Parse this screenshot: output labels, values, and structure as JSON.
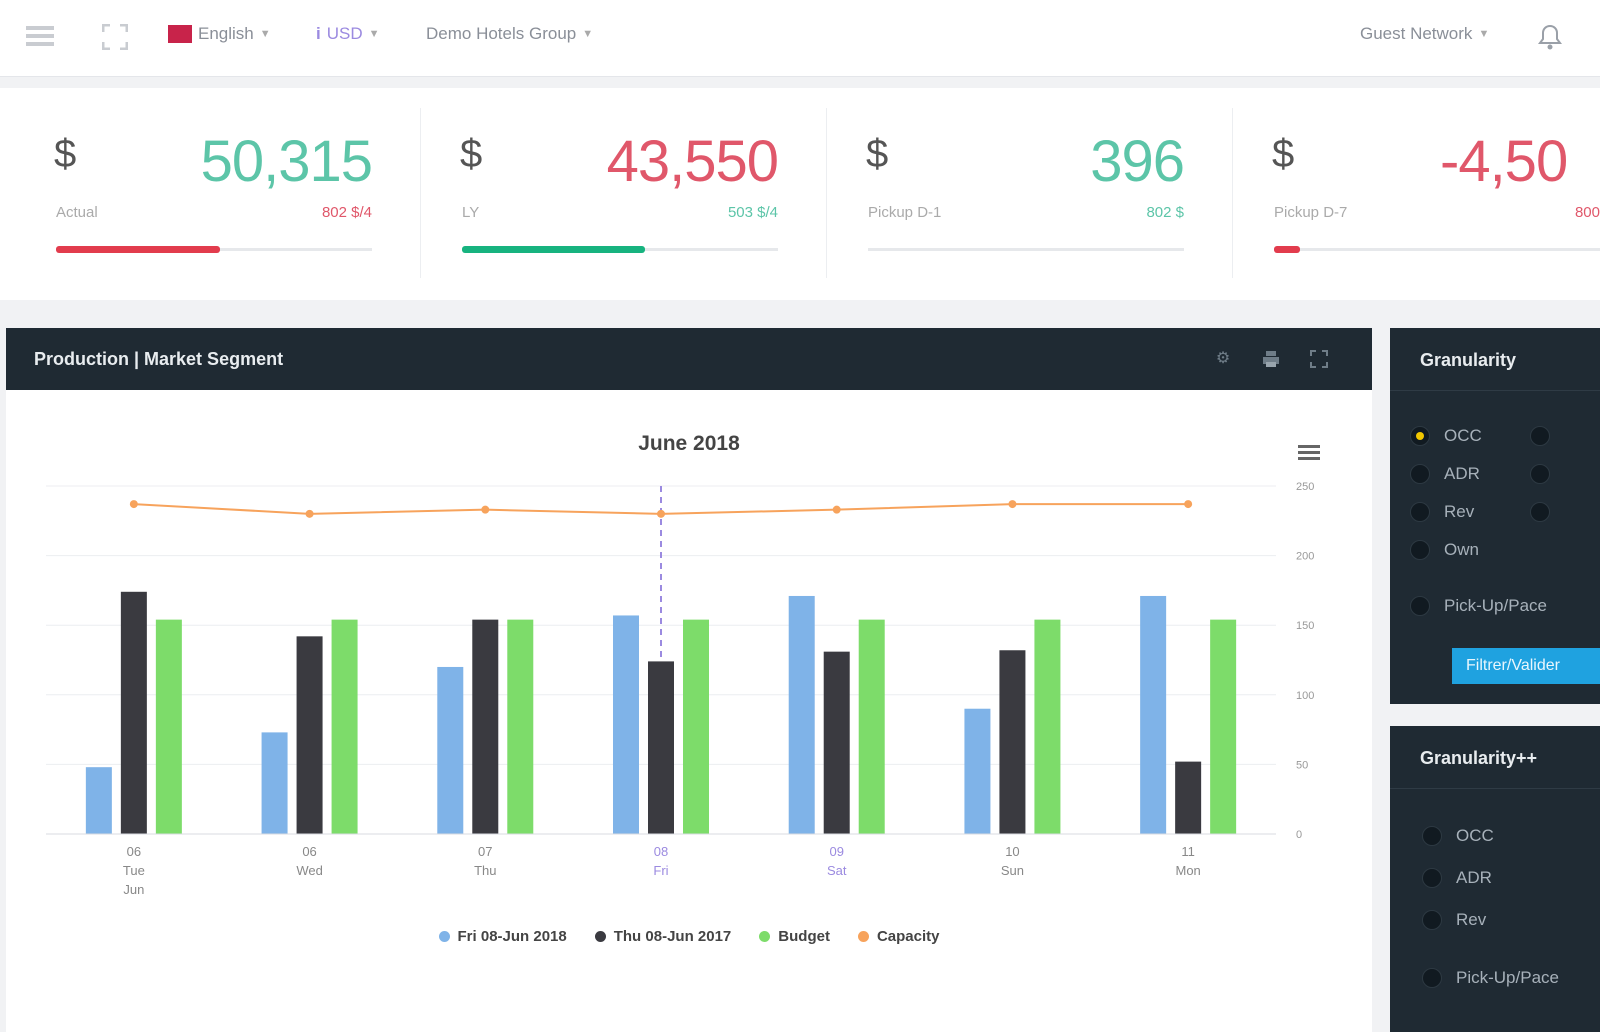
{
  "topbar": {
    "language": "English",
    "currency": "USD",
    "hotel": "Demo Hotels Group",
    "user": "Guest Network"
  },
  "kpis": [
    {
      "currency": "$",
      "value": "50,315",
      "value_color": "#5cc5a8",
      "label": "Actual",
      "sub": "802 $/4",
      "sub_color": "#e0576a",
      "progress": 0.52,
      "bar_color": "#e23c4d"
    },
    {
      "currency": "$",
      "value": "43,550",
      "value_color": "#e0576a",
      "label": "LY",
      "sub": "503 $/4",
      "sub_color": "#5cc5a8",
      "progress": 0.58,
      "bar_color": "#17b37f"
    },
    {
      "currency": "$",
      "value": "396",
      "value_color": "#5cc5a8",
      "label": "Pickup D-1",
      "sub": "802 $",
      "sub_color": "#5cc5a8",
      "progress": 0.0,
      "bar_color": "#5cc5a8"
    },
    {
      "currency": "$",
      "value": "-4,50",
      "value_color": "#e0576a",
      "label": "Pickup D-7",
      "sub": "800",
      "sub_color": "#e0576a",
      "progress": 0.08,
      "bar_color": "#e23c4d"
    }
  ],
  "panel": {
    "title": "Production | Market Segment",
    "icons": [
      "gear-icon",
      "print-icon",
      "expand-icon"
    ]
  },
  "chart_data": {
    "type": "bar",
    "title": "June 2018",
    "categories": [
      [
        "06",
        "Tue",
        "Jun"
      ],
      [
        "06",
        "Wed"
      ],
      [
        "07",
        "Thu"
      ],
      [
        "08",
        "Fri"
      ],
      [
        "09",
        "Sat"
      ],
      [
        "10",
        "Sun"
      ],
      [
        "11",
        "Mon"
      ]
    ],
    "series": [
      {
        "name": "Fri 08-Jun 2018",
        "color": "#7fb3e8",
        "values": [
          48,
          73,
          120,
          157,
          171,
          90,
          171
        ]
      },
      {
        "name": "Thu 08-Jun 2017",
        "color": "#3a3a40",
        "values": [
          174,
          142,
          154,
          124,
          131,
          132,
          52
        ]
      },
      {
        "name": "Budget",
        "color": "#7ddc6a",
        "values": [
          154,
          154,
          154,
          154,
          154,
          154,
          154
        ]
      },
      {
        "name": "Capacity",
        "color": "#f7a35c",
        "type": "line",
        "values": [
          237,
          230,
          233,
          230,
          233,
          237,
          237
        ]
      }
    ],
    "yticks": [
      "250",
      "200",
      "150",
      "100",
      "50",
      "0"
    ],
    "ylim": [
      0,
      250
    ],
    "highlight_index": 3,
    "grid": true,
    "legend": "bottom"
  },
  "side_panels": [
    {
      "title": "Granularity",
      "options": [
        "OCC",
        "ADR",
        "Rev",
        "Own"
      ],
      "options_col2": [
        "",
        "",
        ""
      ],
      "extra_option": "Pick-Up/Pace",
      "button": "Filtrer/Valider",
      "selected": 0
    },
    {
      "title": "Granularity++",
      "options": [
        "OCC",
        "ADR",
        "Rev"
      ],
      "extra_option": "Pick-Up/Pace"
    }
  ]
}
